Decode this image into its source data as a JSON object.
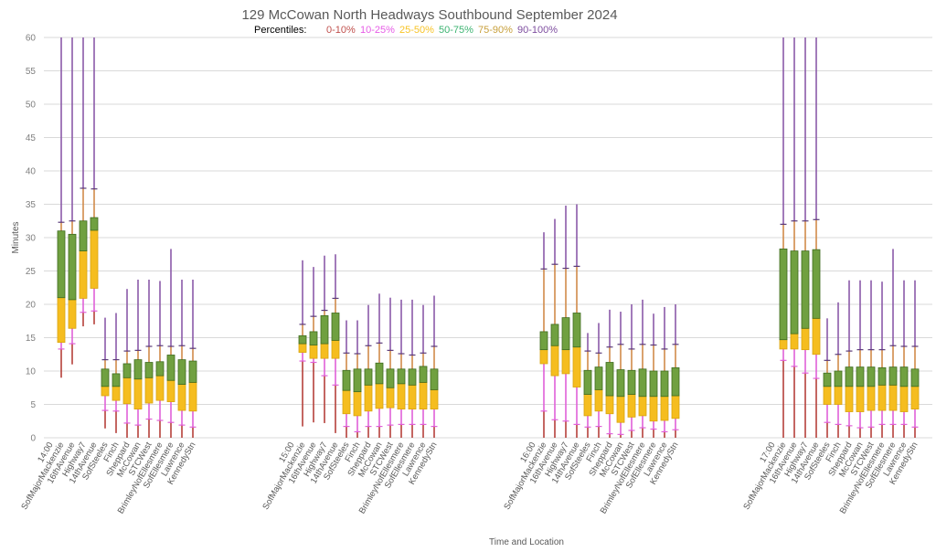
{
  "chart_data": {
    "type": "boxplot-percentile",
    "title": "129 McCowan North Headways Southbound September 2024",
    "legend": {
      "prefix": "Percentiles:",
      "entries": [
        {
          "label": "0-10%",
          "color": "#c0504d"
        },
        {
          "label": "10-25%",
          "color": "#e65ce6"
        },
        {
          "label": "25-50%",
          "color": "#f7c325"
        },
        {
          "label": "50-75%",
          "color": "#3cb371"
        },
        {
          "label": "75-90%",
          "color": "#c8a03c"
        },
        {
          "label": "90-100%",
          "color": "#7f4fa0"
        }
      ],
      "placement": "top-center"
    },
    "xlabel": "Time and Location",
    "ylabel": "Minutes",
    "ylim": [
      0,
      60
    ],
    "yticks": [
      0,
      5,
      10,
      15,
      20,
      25,
      30,
      35,
      40,
      45,
      50,
      55,
      60
    ],
    "grid": true,
    "colors": {
      "whisker_low": "#b5403a",
      "whisker_p10_p25": "#e060d8",
      "box_lower": "#f5bd1f",
      "box_upper": "#70a040",
      "box_border": "#3f6b1f",
      "whisker_p75_p90": "#d08a4a",
      "whisker_high": "#8a5aa8",
      "gridline": "#d9d9d9"
    },
    "stations": [
      "SofMajorMackenzie",
      "16thAvenue",
      "Highway7",
      "14thAvenue",
      "SofSteeles",
      "Finch",
      "Sheppard",
      "McCowan",
      "STCWest",
      "BrimleyNofEllesmere",
      "SofEllesmere",
      "Lawrence",
      "KennedyStn"
    ],
    "groups": [
      {
        "time": "14:00",
        "series": [
          {
            "min": 9.0,
            "p10": 13.3,
            "p25": 14.3,
            "p50": 21.0,
            "p75": 31.0,
            "p90": 32.3,
            "max": 60
          },
          {
            "min": 11.0,
            "p10": 14.1,
            "p25": 16.4,
            "p50": 20.7,
            "p75": 30.5,
            "p90": 32.5,
            "max": 60
          },
          {
            "min": 16.7,
            "p10": 18.8,
            "p25": 20.9,
            "p50": 28.0,
            "p75": 32.5,
            "p90": 37.4,
            "max": 60
          },
          {
            "min": 17.0,
            "p10": 19.0,
            "p25": 22.4,
            "p50": 31.1,
            "p75": 33.0,
            "p90": 37.3,
            "max": 60
          },
          {
            "min": 1.4,
            "p10": 4.1,
            "p25": 6.3,
            "p50": 7.7,
            "p75": 10.3,
            "p90": 11.7,
            "max": 18.0
          },
          {
            "min": 0.7,
            "p10": 4.0,
            "p25": 5.6,
            "p50": 7.7,
            "p75": 9.6,
            "p90": 11.7,
            "max": 18.7
          },
          {
            "min": 0,
            "p10": 2.2,
            "p25": 5.1,
            "p50": 9.0,
            "p75": 11.1,
            "p90": 13.0,
            "max": 22.3
          },
          {
            "min": 0,
            "p10": 1.9,
            "p25": 4.3,
            "p50": 8.8,
            "p75": 11.7,
            "p90": 13.1,
            "max": 23.7
          },
          {
            "min": 0,
            "p10": 2.8,
            "p25": 5.2,
            "p50": 9.0,
            "p75": 11.3,
            "p90": 13.7,
            "max": 23.7
          },
          {
            "min": 0,
            "p10": 2.6,
            "p25": 5.6,
            "p50": 9.3,
            "p75": 11.4,
            "p90": 13.8,
            "max": 23.5
          },
          {
            "min": 0,
            "p10": 2.3,
            "p25": 5.4,
            "p50": 8.6,
            "p75": 12.4,
            "p90": 13.7,
            "max": 28.3
          },
          {
            "min": 0,
            "p10": 1.9,
            "p25": 4.1,
            "p50": 8.0,
            "p75": 11.7,
            "p90": 13.8,
            "max": 23.7
          },
          {
            "min": 0,
            "p10": 1.6,
            "p25": 4.0,
            "p50": 8.3,
            "p75": 11.5,
            "p90": 13.4,
            "max": 23.7
          }
        ]
      },
      {
        "time": "15:00",
        "series": [
          {
            "min": 1.7,
            "p10": 11.5,
            "p25": 12.8,
            "p50": 14.1,
            "p75": 15.3,
            "p90": 17.0,
            "max": 26.6
          },
          {
            "min": 2.3,
            "p10": 11.3,
            "p25": 11.9,
            "p50": 13.9,
            "p75": 15.9,
            "p90": 18.2,
            "max": 25.6
          },
          {
            "min": 2.2,
            "p10": 9.3,
            "p25": 11.9,
            "p50": 14.1,
            "p75": 18.3,
            "p90": 19.1,
            "max": 27.3
          },
          {
            "min": 0.7,
            "p10": 7.9,
            "p25": 11.9,
            "p50": 14.6,
            "p75": 18.7,
            "p90": 20.9,
            "max": 27.5
          },
          {
            "min": 0,
            "p10": 1.7,
            "p25": 3.6,
            "p50": 7.1,
            "p75": 10.1,
            "p90": 12.7,
            "max": 17.6
          },
          {
            "min": 0,
            "p10": 0.9,
            "p25": 3.3,
            "p50": 6.9,
            "p75": 10.3,
            "p90": 12.6,
            "max": 17.6
          },
          {
            "min": 0,
            "p10": 1.7,
            "p25": 4.0,
            "p50": 7.9,
            "p75": 10.3,
            "p90": 13.8,
            "max": 19.9
          },
          {
            "min": 0,
            "p10": 1.7,
            "p25": 4.4,
            "p50": 8.1,
            "p75": 11.2,
            "p90": 14.2,
            "max": 21.6
          },
          {
            "min": 0,
            "p10": 1.9,
            "p25": 4.5,
            "p50": 7.5,
            "p75": 10.3,
            "p90": 13.1,
            "max": 21.0
          },
          {
            "min": 0,
            "p10": 2.0,
            "p25": 4.3,
            "p50": 8.1,
            "p75": 10.3,
            "p90": 12.6,
            "max": 20.7
          },
          {
            "min": 0,
            "p10": 2.0,
            "p25": 4.3,
            "p50": 7.9,
            "p75": 10.3,
            "p90": 12.4,
            "max": 20.7
          },
          {
            "min": 0,
            "p10": 2.0,
            "p25": 4.3,
            "p50": 8.3,
            "p75": 10.7,
            "p90": 12.7,
            "max": 19.9
          },
          {
            "min": 0,
            "p10": 1.7,
            "p25": 4.3,
            "p50": 7.2,
            "p75": 10.3,
            "p90": 13.7,
            "max": 21.3
          }
        ]
      },
      {
        "time": "16:00",
        "series": [
          {
            "min": 0,
            "p10": 4.0,
            "p25": 11.1,
            "p50": 13.2,
            "p75": 15.9,
            "p90": 25.3,
            "max": 30.8
          },
          {
            "min": 0,
            "p10": 2.7,
            "p25": 9.3,
            "p50": 13.8,
            "p75": 17.0,
            "p90": 26.0,
            "max": 32.8
          },
          {
            "min": 0,
            "p10": 2.5,
            "p25": 9.6,
            "p50": 13.2,
            "p75": 18.0,
            "p90": 25.4,
            "max": 34.8
          },
          {
            "min": 0,
            "p10": 2.0,
            "p25": 7.6,
            "p50": 13.6,
            "p75": 18.7,
            "p90": 25.7,
            "max": 35.0
          },
          {
            "min": 0,
            "p10": 1.6,
            "p25": 3.3,
            "p50": 6.5,
            "p75": 10.1,
            "p90": 13.0,
            "max": 15.7
          },
          {
            "min": 0,
            "p10": 1.7,
            "p25": 4.0,
            "p50": 7.2,
            "p75": 10.6,
            "p90": 12.7,
            "max": 17.2
          },
          {
            "min": 0,
            "p10": 0.6,
            "p25": 3.6,
            "p50": 6.3,
            "p75": 11.3,
            "p90": 13.6,
            "max": 19.2
          },
          {
            "min": 0,
            "p10": 0.5,
            "p25": 2.3,
            "p50": 6.2,
            "p75": 10.2,
            "p90": 14.0,
            "max": 18.9
          },
          {
            "min": 0,
            "p10": 1.1,
            "p25": 3.1,
            "p50": 6.5,
            "p75": 10.1,
            "p90": 13.3,
            "max": 20.0
          },
          {
            "min": 0,
            "p10": 1.5,
            "p25": 3.3,
            "p50": 6.2,
            "p75": 10.3,
            "p90": 14.0,
            "max": 20.7
          },
          {
            "min": 0,
            "p10": 1.3,
            "p25": 2.5,
            "p50": 6.2,
            "p75": 10.0,
            "p90": 13.9,
            "max": 18.6
          },
          {
            "min": 0,
            "p10": 0.9,
            "p25": 2.6,
            "p50": 6.2,
            "p75": 10.0,
            "p90": 13.3,
            "max": 19.6
          },
          {
            "min": 0,
            "p10": 1.2,
            "p25": 2.9,
            "p50": 6.3,
            "p75": 10.5,
            "p90": 14.0,
            "max": 20.0
          }
        ]
      },
      {
        "time": "17:00",
        "series": [
          {
            "min": 0,
            "p10": 11.6,
            "p25": 13.3,
            "p50": 14.7,
            "p75": 28.3,
            "p90": 32.0,
            "max": 60
          },
          {
            "min": 0,
            "p10": 10.7,
            "p25": 13.3,
            "p50": 15.6,
            "p75": 28.0,
            "p90": 32.5,
            "max": 60
          },
          {
            "min": 0,
            "p10": 9.7,
            "p25": 13.2,
            "p50": 16.4,
            "p75": 28.0,
            "p90": 32.5,
            "max": 60
          },
          {
            "min": 0,
            "p10": 8.9,
            "p25": 12.5,
            "p50": 17.9,
            "p75": 28.2,
            "p90": 32.7,
            "max": 60
          },
          {
            "min": 0,
            "p10": 2.3,
            "p25": 5.0,
            "p50": 7.7,
            "p75": 9.7,
            "p90": 11.6,
            "max": 17.9
          },
          {
            "min": 0,
            "p10": 2.0,
            "p25": 5.0,
            "p50": 7.7,
            "p75": 10.0,
            "p90": 12.5,
            "max": 20.3
          },
          {
            "min": 0,
            "p10": 1.8,
            "p25": 3.9,
            "p50": 7.7,
            "p75": 10.6,
            "p90": 13.0,
            "max": 23.6
          },
          {
            "min": 0,
            "p10": 1.5,
            "p25": 3.9,
            "p50": 7.7,
            "p75": 10.6,
            "p90": 13.2,
            "max": 23.6
          },
          {
            "min": 0,
            "p10": 1.6,
            "p25": 4.1,
            "p50": 7.7,
            "p75": 10.6,
            "p90": 13.2,
            "max": 23.6
          },
          {
            "min": 0,
            "p10": 2.0,
            "p25": 4.1,
            "p50": 7.9,
            "p75": 10.5,
            "p90": 13.2,
            "max": 23.4
          },
          {
            "min": 0,
            "p10": 2.0,
            "p25": 4.1,
            "p50": 7.9,
            "p75": 10.6,
            "p90": 13.8,
            "max": 28.3
          },
          {
            "min": 0,
            "p10": 2.0,
            "p25": 3.9,
            "p50": 7.7,
            "p75": 10.6,
            "p90": 13.7,
            "max": 23.6
          },
          {
            "min": 0,
            "p10": 1.6,
            "p25": 4.3,
            "p50": 7.7,
            "p75": 10.3,
            "p90": 13.7,
            "max": 23.6
          }
        ]
      }
    ]
  }
}
